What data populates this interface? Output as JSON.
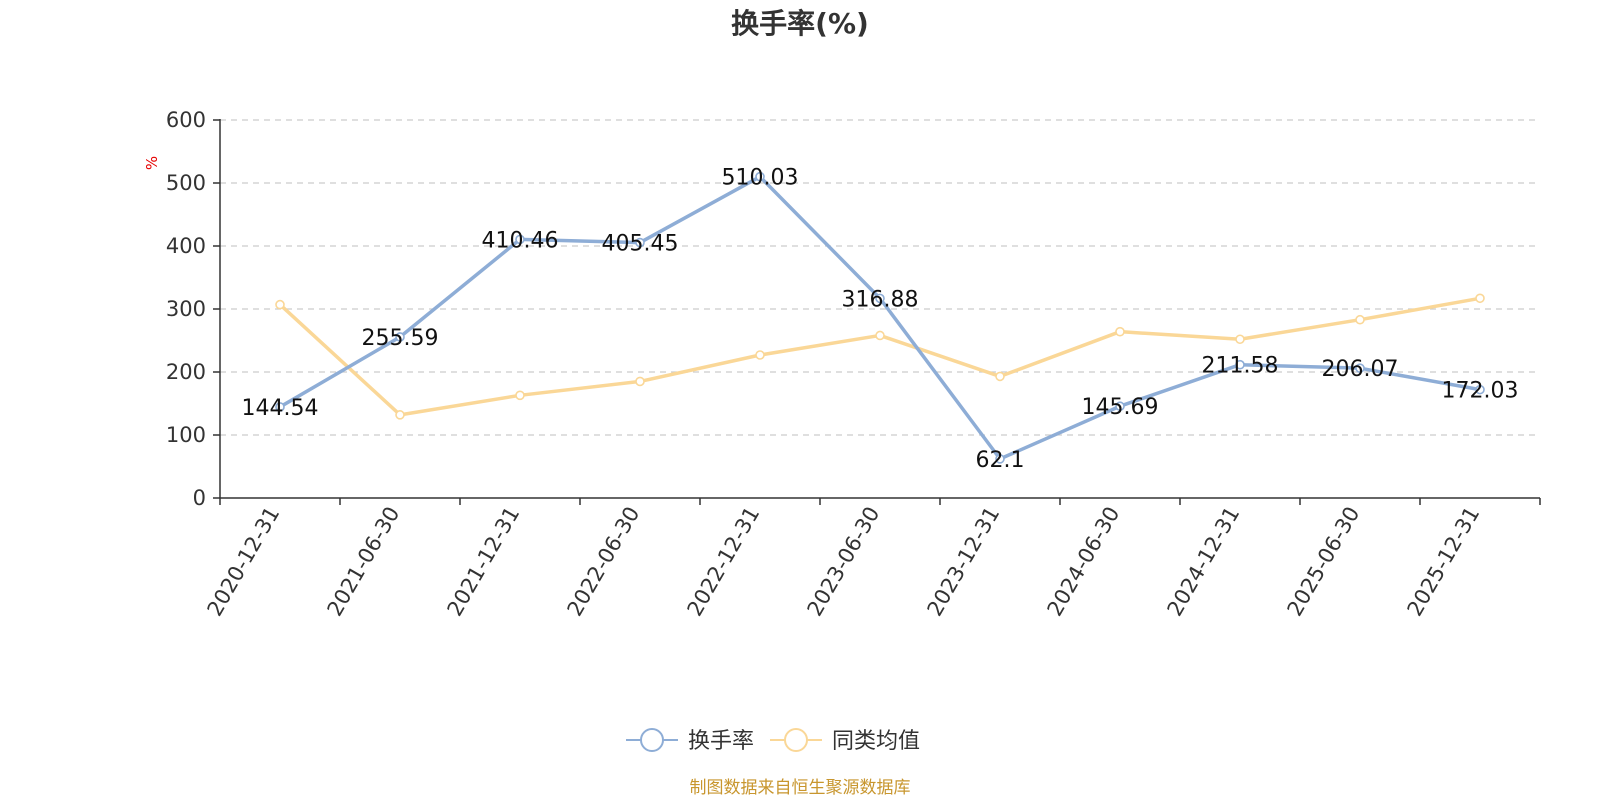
{
  "chart_data": {
    "type": "line",
    "title": "换手率(%)",
    "ylabel": "%",
    "xlabel": "",
    "ylim": [
      0,
      600
    ],
    "yticks": [
      0,
      100,
      200,
      300,
      400,
      500,
      600
    ],
    "grid": "horizontal-dashed",
    "legend_placement": "bottom-center",
    "categories": [
      "2020-12-31",
      "2021-06-30",
      "2021-12-31",
      "2022-06-30",
      "2022-12-31",
      "2023-06-30",
      "2023-12-31",
      "2024-06-30",
      "2024-12-31",
      "2025-06-30",
      "2025-12-31"
    ],
    "series": [
      {
        "name": "换手率",
        "color": "#8eadd6",
        "values": [
          144.54,
          255.59,
          410.46,
          405.45,
          510.03,
          316.88,
          62.1,
          145.69,
          211.58,
          206.07,
          172.03
        ],
        "labels": [
          "144.54",
          "255.59",
          "410.46",
          "405.45",
          "510.03",
          "316.88",
          "62.1",
          "145.69",
          "211.58",
          "206.07",
          "172.03"
        ]
      },
      {
        "name": "同类均值",
        "color": "#fad797",
        "values": [
          307,
          132,
          163,
          185,
          227,
          258,
          193,
          264,
          252,
          283,
          317
        ]
      }
    ],
    "source": "制图数据来自恒生聚源数据库"
  }
}
